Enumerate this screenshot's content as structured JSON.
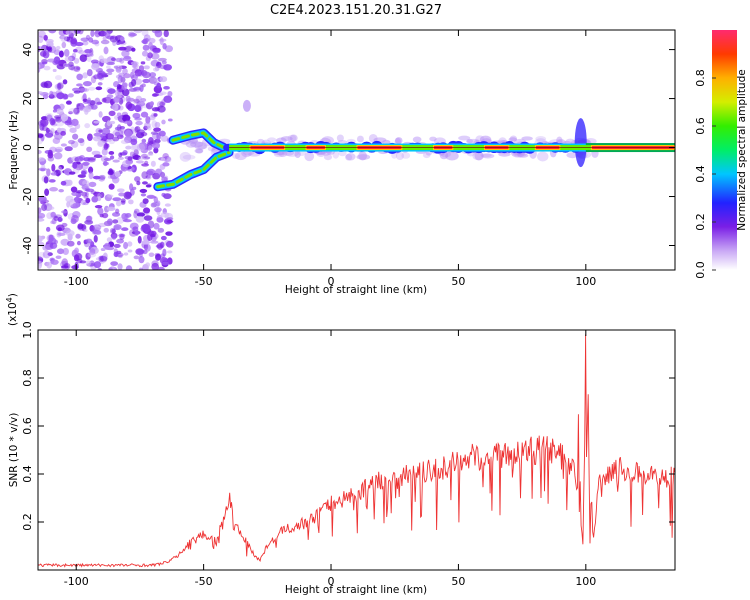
{
  "page": {
    "title": "C2E4.2023.151.20.31.G27"
  },
  "chart_data": [
    {
      "type": "heatmap",
      "name": "spectrogram",
      "title": "C2E4.2023.151.20.31.G27",
      "xlabel": "Height of straight line (km)",
      "ylabel": "Frequency (Hz)",
      "xlim": [
        -115,
        135
      ],
      "ylim": [
        -50,
        48
      ],
      "xticks": [
        -100,
        -50,
        0,
        50,
        100
      ],
      "yticks": [
        -40,
        -20,
        0,
        20,
        40
      ],
      "tick_labels": {
        "x": [
          "-100",
          "-50",
          "0",
          "50",
          "100"
        ],
        "y": [
          "-40",
          "-20",
          "0",
          "20",
          "40"
        ]
      },
      "colorbar": {
        "label": "Normalized spectral amplitude",
        "range": [
          0,
          1
        ],
        "ticks": [
          0.0,
          0.2,
          0.4,
          0.6,
          0.8
        ],
        "tick_labels": [
          "0.0",
          "0.2",
          "0.4",
          "0.6",
          "0.8"
        ]
      },
      "features": {
        "noise_region_x": [
          -115,
          -65
        ],
        "upper_branch": [
          [
            -62,
            3
          ],
          [
            -55,
            5
          ],
          [
            -50,
            6
          ],
          [
            -46,
            2
          ],
          [
            -42,
            0
          ]
        ],
        "lower_branch": [
          [
            -68,
            -16
          ],
          [
            -62,
            -15
          ],
          [
            -55,
            -11
          ],
          [
            -50,
            -9
          ],
          [
            -45,
            -4
          ],
          [
            -40,
            -2
          ]
        ],
        "central_line": {
          "x": [
            -40,
            135
          ],
          "freq": 0
        },
        "spread_peak": {
          "x": 98,
          "freq_range": [
            -8,
            12
          ]
        },
        "isolated_blob": {
          "x": -33,
          "freq": 17
        }
      }
    },
    {
      "type": "line",
      "name": "snr",
      "xlabel": "Height of straight line (km)",
      "ylabel": "SNR (10 * v/v)",
      "y_multiplier_label": "(x10",
      "y_multiplier_exp": "4",
      "y_multiplier_close": ")",
      "xlim": [
        -115,
        135
      ],
      "ylim": [
        0,
        1.0
      ],
      "xticks": [
        -100,
        -50,
        0,
        50,
        100
      ],
      "yticks": [
        0.2,
        0.4,
        0.6,
        0.8,
        1.0
      ],
      "tick_labels": {
        "x": [
          "-100",
          "-50",
          "0",
          "50",
          "100"
        ],
        "y": [
          "0.2",
          "0.4",
          "0.6",
          "0.8",
          "1.0"
        ]
      },
      "line_color": "#ee3333",
      "series": [
        {
          "x": [
            -115,
            -100,
            -90,
            -80,
            -70,
            -65,
            -60,
            -55,
            -50,
            -45,
            -42,
            -40,
            -38,
            -35,
            -32,
            -30,
            -28,
            -25,
            -22,
            -20,
            -15,
            -10,
            -5,
            0,
            5,
            10,
            15,
            20,
            25,
            30,
            35,
            40,
            45,
            50,
            55,
            60,
            65,
            70,
            75,
            80,
            85,
            90,
            95,
            97,
            98,
            99,
            100,
            101,
            103,
            105,
            110,
            115,
            120,
            125,
            130,
            135
          ],
          "values": [
            0.02,
            0.02,
            0.02,
            0.02,
            0.02,
            0.03,
            0.06,
            0.12,
            0.15,
            0.12,
            0.22,
            0.3,
            0.2,
            0.15,
            0.1,
            0.06,
            0.04,
            0.1,
            0.13,
            0.16,
            0.18,
            0.2,
            0.23,
            0.28,
            0.3,
            0.32,
            0.35,
            0.38,
            0.38,
            0.4,
            0.4,
            0.42,
            0.43,
            0.45,
            0.47,
            0.47,
            0.48,
            0.48,
            0.49,
            0.5,
            0.5,
            0.48,
            0.42,
            0.3,
            0.2,
            0.1,
            1.0,
            0.45,
            0.12,
            0.35,
            0.42,
            0.42,
            0.4,
            0.4,
            0.38,
            0.4
          ]
        }
      ]
    }
  ],
  "colors": {
    "line": "#ee3333",
    "noise": "#8a3ff0",
    "band_core": "#ff2a2a"
  }
}
